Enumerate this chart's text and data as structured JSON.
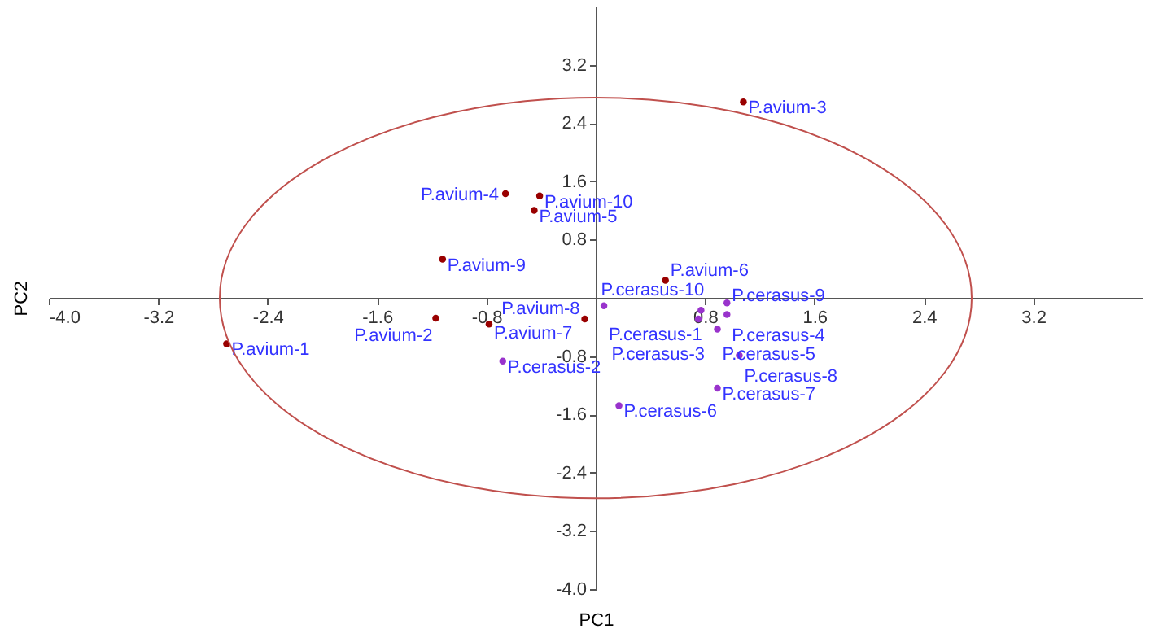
{
  "chart_data": {
    "type": "scatter",
    "xlabel": "PC1",
    "ylabel": "PC2",
    "xlim": [
      -4,
      4
    ],
    "ylim": [
      -4,
      4
    ],
    "xticks": [
      {
        "value": -4,
        "label": "-4.0"
      },
      {
        "value": -3.2,
        "label": "-3.2"
      },
      {
        "value": -2.4,
        "label": "-2.4"
      },
      {
        "value": -1.6,
        "label": "-1.6"
      },
      {
        "value": -0.8,
        "label": "-0.8"
      },
      {
        "value": 0.8,
        "label": "0.8"
      },
      {
        "value": 1.6,
        "label": "1.6"
      },
      {
        "value": 2.4,
        "label": "2.4"
      },
      {
        "value": 3.2,
        "label": "3.2"
      }
    ],
    "yticks": [
      {
        "value": -4,
        "label": "-4.0"
      },
      {
        "value": -3.2,
        "label": "-3.2"
      },
      {
        "value": -2.4,
        "label": "-2.4"
      },
      {
        "value": -1.6,
        "label": "-1.6"
      },
      {
        "value": -0.8,
        "label": "-0.8"
      },
      {
        "value": 0.8,
        "label": "0.8"
      },
      {
        "value": 1.6,
        "label": "1.6"
      },
      {
        "value": 2.4,
        "label": "2.4"
      },
      {
        "value": 3.2,
        "label": "3.2"
      }
    ],
    "grid": false,
    "marker": "circle",
    "series": [
      {
        "color": "#990000",
        "x": [
          -2.7,
          -1.17,
          1.08,
          -0.66,
          -0.45,
          0.51,
          -0.78,
          -0.08,
          -1.12,
          -0.41
        ],
        "values": [
          -0.63,
          -0.28,
          2.69,
          1.43,
          1.2,
          0.24,
          -0.36,
          -0.29,
          0.53,
          1.4
        ]
      },
      {
        "color": "#9933cc",
        "x": [
          0.06,
          -0.68,
          0.75,
          0.96,
          0.89,
          0.17,
          0.89,
          1.05,
          0.96,
          0.77
        ],
        "values": [
          -0.11,
          -0.87,
          -0.29,
          -0.23,
          -0.43,
          -1.48,
          -1.24,
          -0.79,
          -0.07,
          -0.17
        ]
      }
    ],
    "annotations": [
      {
        "text": "P.avium-1",
        "x": -2.7,
        "y": -0.63
      },
      {
        "text": "P.avium-2",
        "x": -1.17,
        "y": -0.28
      },
      {
        "text": "P.avium-3",
        "x": 1.08,
        "y": 2.69
      },
      {
        "text": "P.avium-4",
        "x": -0.66,
        "y": 1.43
      },
      {
        "text": "P.avium-5",
        "x": -0.45,
        "y": 1.2
      },
      {
        "text": "P.avium-6",
        "x": 0.51,
        "y": 0.24
      },
      {
        "text": "P.avium-7",
        "x": -0.78,
        "y": -0.36
      },
      {
        "text": "P.avium-8",
        "x": -0.08,
        "y": -0.29
      },
      {
        "text": "P.avium-9",
        "x": -1.12,
        "y": 0.53
      },
      {
        "text": "P.avium-10",
        "x": -0.41,
        "y": 1.4
      },
      {
        "text": "P.cerasus-1",
        "x": 0.06,
        "y": -0.11
      },
      {
        "text": "P.cerasus-2",
        "x": -0.68,
        "y": -0.87
      },
      {
        "text": "P.cerasus-3",
        "x": 0.75,
        "y": -0.29
      },
      {
        "text": "P.cerasus-4",
        "x": 0.96,
        "y": -0.23
      },
      {
        "text": "P.cerasus-5",
        "x": 0.89,
        "y": -0.43
      },
      {
        "text": "P.cerasus-6",
        "x": 0.17,
        "y": -1.48
      },
      {
        "text": "P.cerasus-7",
        "x": 0.89,
        "y": -1.24
      },
      {
        "text": "P.cerasus-8",
        "x": 1.05,
        "y": -0.79
      },
      {
        "text": "P.cerasus-9",
        "x": 0.96,
        "y": -0.07
      },
      {
        "text": "P.cerasus-10",
        "x": 0.77,
        "y": -0.17
      }
    ]
  }
}
